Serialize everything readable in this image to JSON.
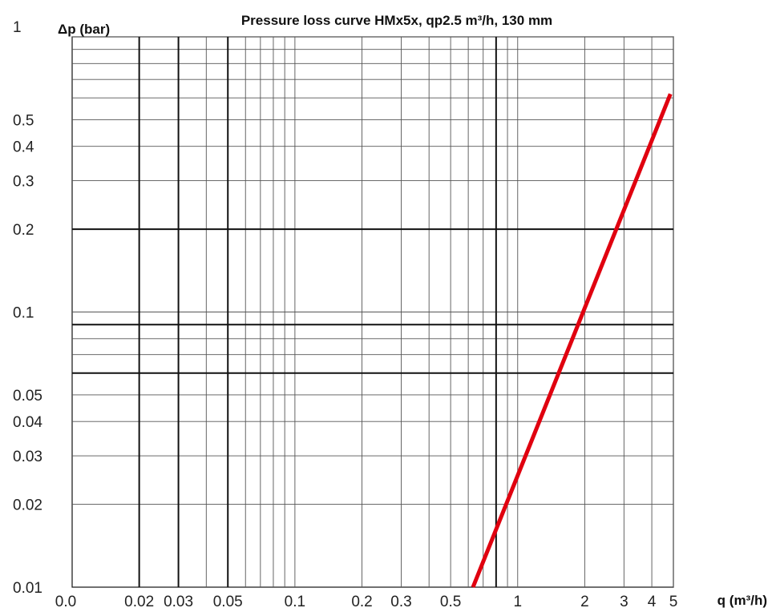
{
  "chart_data": {
    "type": "line",
    "title": "Pressure loss curve HMx5x, qp2.5 m³/h, 130 mm",
    "xlabel": "q (m³/h)",
    "ylabel": "Δp (bar)",
    "xscale": "log",
    "yscale": "log",
    "xlim": [
      0.01,
      5
    ],
    "ylim": [
      0.01,
      1
    ],
    "grid": true,
    "x_tick_labels": [
      {
        "value": 0.01,
        "label": "0.0"
      },
      {
        "value": 0.02,
        "label": "0.02"
      },
      {
        "value": 0.03,
        "label": "0.03"
      },
      {
        "value": 0.05,
        "label": "0.05"
      },
      {
        "value": 0.1,
        "label": "0.1"
      },
      {
        "value": 0.2,
        "label": "0.2"
      },
      {
        "value": 0.3,
        "label": "0.3"
      },
      {
        "value": 0.5,
        "label": "0.5"
      },
      {
        "value": 1,
        "label": "1"
      },
      {
        "value": 2,
        "label": "2"
      },
      {
        "value": 3,
        "label": "3"
      },
      {
        "value": 4,
        "label": "4"
      },
      {
        "value": 5,
        "label": "5"
      }
    ],
    "y_tick_labels": [
      {
        "value": 1,
        "label": "1"
      },
      {
        "value": 0.5,
        "label": "0.5"
      },
      {
        "value": 0.4,
        "label": "0.4"
      },
      {
        "value": 0.3,
        "label": "0.3"
      },
      {
        "value": 0.2,
        "label": "0.2"
      },
      {
        "value": 0.1,
        "label": "0.1"
      },
      {
        "value": 0.05,
        "label": "0.05"
      },
      {
        "value": 0.04,
        "label": "0.04"
      },
      {
        "value": 0.03,
        "label": "0.03"
      },
      {
        "value": 0.02,
        "label": "0.02"
      },
      {
        "value": 0.01,
        "label": "0.01"
      }
    ],
    "x_major_grid": [
      0.02,
      0.03,
      0.05,
      0.8
    ],
    "x_minor_grid": [
      0.04,
      0.06,
      0.07,
      0.08,
      0.09,
      0.1,
      0.2,
      0.3,
      0.4,
      0.5,
      0.6,
      0.7,
      0.9,
      1,
      2,
      3,
      4,
      5
    ],
    "y_major_grid": [
      0.2,
      0.09,
      0.06
    ],
    "y_minor_grid": [
      0.02,
      0.03,
      0.04,
      0.05,
      0.07,
      0.08,
      0.1,
      0.3,
      0.4,
      0.5,
      0.6,
      0.7,
      0.8,
      0.9,
      1
    ],
    "series": [
      {
        "color": "#e0000f",
        "x": [
          0.63,
          4.85
        ],
        "y": [
          0.01,
          0.62
        ]
      }
    ]
  }
}
